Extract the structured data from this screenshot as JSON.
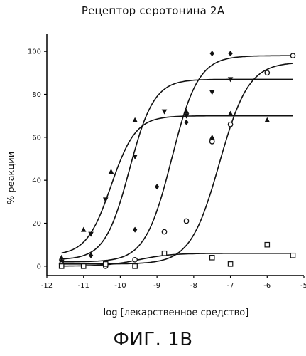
{
  "title": "Рецептор серотонина 2А",
  "caption": "ФИГ. 1B",
  "chart_data": {
    "type": "scatter",
    "title": "Рецептор серотонина 2А",
    "xlabel": "log [лекарственное средство]",
    "ylabel": "% реакции",
    "xlim": [
      -12,
      -5
    ],
    "ylim": [
      -8,
      108
    ],
    "xticks": [
      -12,
      -11,
      -10,
      -9,
      -8,
      -7,
      -6,
      -5
    ],
    "xtick_labels": [
      "-12",
      "-11",
      "-10",
      "-9",
      "-8",
      "-7",
      "-6",
      "-5"
    ],
    "yticks": [
      0,
      20,
      40,
      60,
      80,
      100
    ],
    "ytick_labels": [
      "0",
      "20",
      "40",
      "60",
      "80",
      "100"
    ],
    "grid": false,
    "legend": "none",
    "series": [
      {
        "marker": "triangle-up",
        "curve": {
          "bottom": 5,
          "top": 70,
          "logEC50": -10.25,
          "hill": 1.3
        },
        "x": [
          -11.6,
          -11.0,
          -10.25,
          -9.6,
          -8.2,
          -7.5,
          -7.0,
          -6.0
        ],
        "y": [
          4,
          17,
          44,
          68,
          72,
          60,
          71,
          68
        ]
      },
      {
        "marker": "triangle-down",
        "curve": {
          "bottom": 3,
          "top": 87,
          "logEC50": -9.75,
          "hill": 1.3
        },
        "x": [
          -11.6,
          -10.8,
          -10.4,
          -9.6,
          -8.8,
          -8.2,
          -7.5,
          -7.0
        ],
        "y": [
          2,
          15,
          31,
          51,
          72,
          70,
          81,
          87
        ]
      },
      {
        "marker": "diamond",
        "curve": {
          "bottom": 2,
          "top": 98,
          "logEC50": -8.6,
          "hill": 1.2
        },
        "x": [
          -11.6,
          -10.8,
          -9.6,
          -9.0,
          -8.2,
          -7.5,
          -7.0
        ],
        "y": [
          2,
          5,
          17,
          37,
          67,
          99,
          99
        ]
      },
      {
        "marker": "hexagon",
        "curve": {
          "bottom": 1,
          "top": 95,
          "logEC50": -7.3,
          "hill": 1.1
        },
        "x": [
          -11.6,
          -10.4,
          -9.6,
          -8.8,
          -8.2,
          -7.5,
          -7.0,
          -6.0,
          -5.3
        ],
        "y": [
          1,
          0,
          3,
          16,
          21,
          58,
          66,
          90,
          98
        ]
      },
      {
        "marker": "square",
        "curve": {
          "bottom": 0,
          "top": 6,
          "logEC50": -9.5,
          "hill": 1.0
        },
        "x": [
          -11.6,
          -11.0,
          -10.4,
          -9.6,
          -8.8,
          -7.5,
          -7.0,
          -6.0,
          -5.3
        ],
        "y": [
          0,
          0,
          1,
          0,
          6,
          4,
          1,
          10,
          5
        ]
      }
    ]
  }
}
